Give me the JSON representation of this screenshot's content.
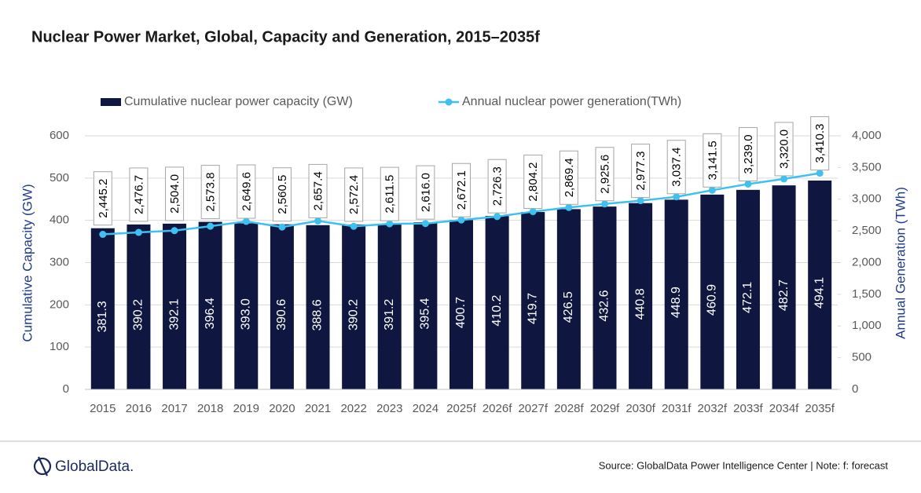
{
  "chart_data": {
    "type": "bar_line",
    "title": "Nuclear Power Market, Global, Capacity and Generation, 2015–2035f",
    "categories": [
      "2015",
      "2016",
      "2017",
      "2018",
      "2019",
      "2020",
      "2021",
      "2022",
      "2023",
      "2024",
      "2025f",
      "2026f",
      "2027f",
      "2028f",
      "2029f",
      "2030f",
      "2031f",
      "2032f",
      "2033f",
      "2034f",
      "2035f"
    ],
    "series": [
      {
        "name": "Cumulative nuclear power capacity (GW)",
        "type": "bar",
        "color": "#0f1740",
        "values": [
          381.3,
          390.2,
          392.1,
          396.4,
          393.0,
          390.6,
          388.6,
          390.2,
          391.2,
          395.4,
          400.7,
          410.2,
          419.7,
          426.5,
          432.6,
          440.8,
          448.9,
          460.9,
          472.1,
          482.7,
          494.1
        ],
        "value_labels": [
          "381.3",
          "390.2",
          "392.1",
          "396.4",
          "393.0",
          "390.6",
          "388.6",
          "390.2",
          "391.2",
          "395.4",
          "400.7",
          "410.2",
          "419.7",
          "426.5",
          "432.6",
          "440.8",
          "448.9",
          "460.9",
          "472.1",
          "482.7",
          "494.1"
        ]
      },
      {
        "name": "Annual nuclear power generation(TWh)",
        "type": "line",
        "axis": "y2",
        "color": "#3ec0f0",
        "values": [
          2445.2,
          2476.7,
          2504.0,
          2573.8,
          2649.6,
          2560.5,
          2657.4,
          2572.4,
          2611.5,
          2616.0,
          2672.1,
          2726.3,
          2804.2,
          2869.4,
          2925.6,
          2977.3,
          3037.4,
          3141.5,
          3239.0,
          3320.0,
          3410.3
        ],
        "value_labels": [
          "2,445.2",
          "2,476.7",
          "2,504.0",
          "2,573.8",
          "2,649.6",
          "2,560.5",
          "2,657.4",
          "2,572.4",
          "2,611.5",
          "2,616.0",
          "2,672.1",
          "2,726.3",
          "2,804.2",
          "2,869.4",
          "2,925.6",
          "2,977.3",
          "3,037.4",
          "3,141.5",
          "3,239.0",
          "3,320.0",
          "3,410.3"
        ]
      }
    ],
    "y_label": "Cumulative Capacity (GW)",
    "y2_label": "Annual Generation (TWh)",
    "ylim": [
      0,
      600
    ],
    "yticks": [
      0,
      100,
      200,
      300,
      400,
      500,
      600
    ],
    "y2lim": [
      0,
      4000
    ],
    "y2ticks": [
      0,
      500,
      {
        "value": 1000,
        "label": "1,000"
      },
      {
        "value": 1500,
        "label": "1,500"
      },
      {
        "value": 2000,
        "label": "2,000"
      },
      {
        "value": 2500,
        "label": "2,500"
      },
      {
        "value": 3000,
        "label": "3,000"
      },
      {
        "value": 3500,
        "label": "3,500"
      },
      {
        "value": 4000,
        "label": "4,000"
      }
    ],
    "grid": true,
    "legend": "top"
  },
  "footer": {
    "logo": "GlobalData.",
    "source": "Source: GlobalData Power Intelligence Center | Note: f: forecast"
  }
}
